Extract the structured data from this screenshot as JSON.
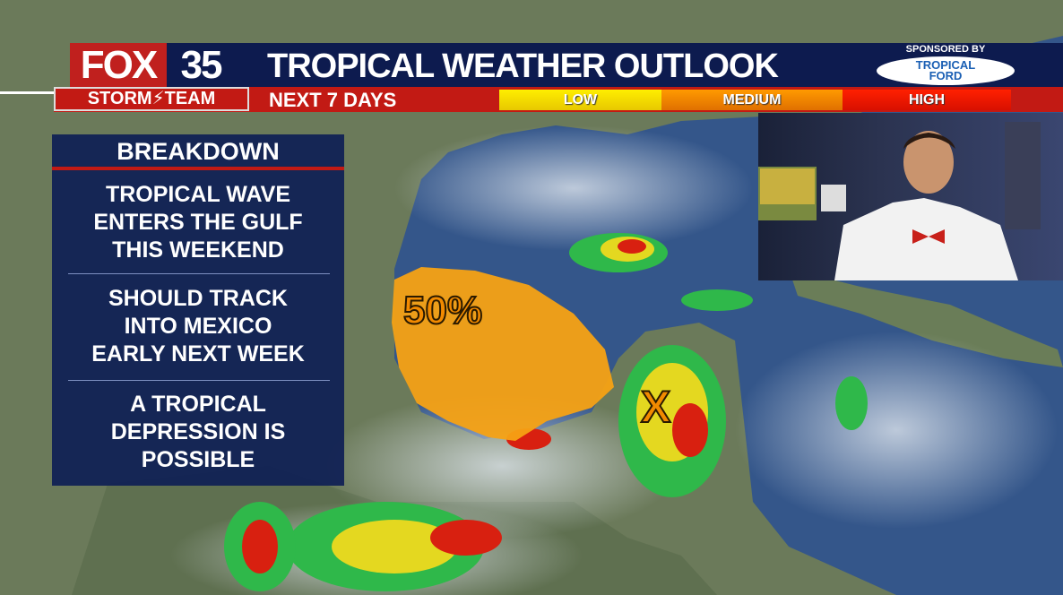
{
  "branding": {
    "station": "FOX",
    "channel": "35",
    "team": "STORM",
    "team2": "TEAM"
  },
  "header": {
    "title": "TROPICAL WEATHER OUTLOOK",
    "subtitle": "NEXT 7 DAYS"
  },
  "sponsor": {
    "label": "SPONSORED BY",
    "logo_line1": "TROPICAL",
    "logo_line2": "FORD"
  },
  "legend": {
    "low": "LOW",
    "medium": "MEDIUM",
    "high": "HIGH",
    "colors": {
      "low": "#ffee00",
      "medium": "#ff9a00",
      "high": "#ff2000"
    }
  },
  "breakdown": {
    "title": "BREAKDOWN",
    "items": [
      [
        "TROPICAL WAVE",
        "ENTERS THE GULF",
        "THIS WEEKEND"
      ],
      [
        "SHOULD TRACK",
        "INTO MEXICO",
        "EARLY NEXT WEEK"
      ],
      [
        "A TROPICAL",
        "DEPRESSION IS",
        "POSSIBLE"
      ]
    ]
  },
  "map": {
    "area_chance": "50%",
    "area_level": "medium",
    "disturbance_marker": "X"
  }
}
